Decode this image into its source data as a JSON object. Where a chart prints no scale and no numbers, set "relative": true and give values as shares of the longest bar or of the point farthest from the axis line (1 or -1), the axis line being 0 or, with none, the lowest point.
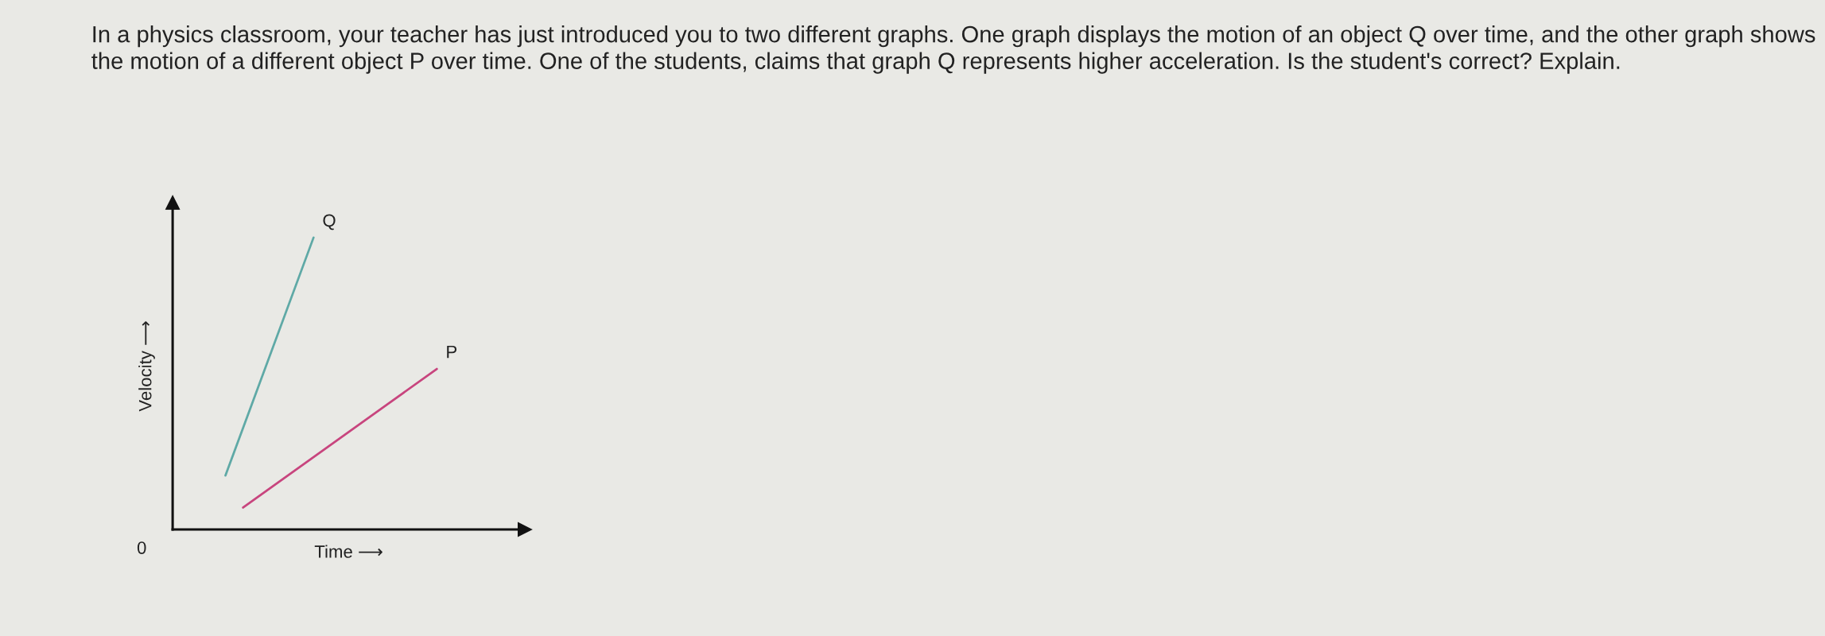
{
  "chart_data": {
    "type": "line",
    "relative": true,
    "title": "In a physics classroom, your teacher has just introduced you to two different graphs. One graph displays the motion of an object Q over time, and the other graph shows the motion of a different object P over time. One of the students, claims that graph Q represents higher acceleration. Is the student's correct? Explain.",
    "xlabel": "Time ⟶",
    "ylabel": "Velocity ⟶",
    "categories": [
      null,
      null,
      null,
      null,
      null,
      null,
      null,
      null,
      null,
      null,
      null,
      null,
      null,
      null,
      null,
      null,
      null,
      null,
      null,
      null,
      null
    ],
    "annotations": [
      "0"
    ],
    "series": [
      {
        "name": "Q",
        "color": "#5fa9a6",
        "values": [
          null,
          null,
          null,
          0.185,
          null,
          null,
          null,
          null,
          1,
          null,
          null,
          null,
          null,
          null,
          null,
          null,
          null,
          null,
          null,
          null,
          null
        ]
      },
      {
        "name": "P",
        "color": "#c8457e",
        "values": [
          null,
          null,
          null,
          null,
          0.075,
          null,
          null,
          null,
          null,
          null,
          null,
          null,
          null,
          null,
          null,
          0.55,
          null,
          null,
          null,
          null,
          null
        ]
      }
    ]
  }
}
